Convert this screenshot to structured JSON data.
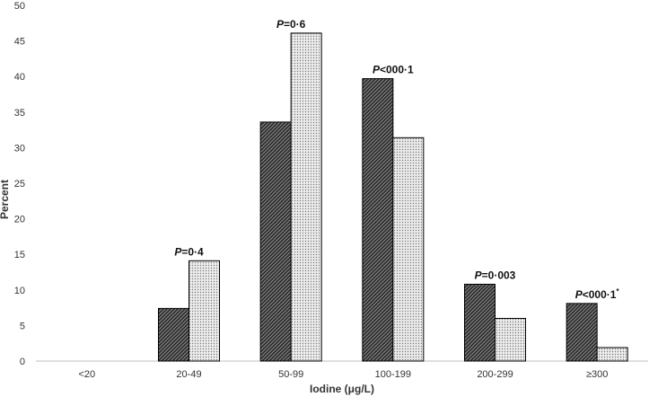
{
  "chart_data": {
    "type": "bar",
    "xlabel": "Iodine (μg/L)",
    "ylabel": "Percent",
    "ylim": [
      0,
      50
    ],
    "yticks": [
      0,
      5,
      10,
      15,
      20,
      25,
      30,
      35,
      40,
      45,
      50
    ],
    "categories": [
      "<20",
      "20-49",
      "50-99",
      "100-199",
      "200-299",
      "≥300"
    ],
    "series": [
      {
        "fill": "dark-diagonal-hatch",
        "values": [
          0,
          7.4,
          33.6,
          39.7,
          10.8,
          8.1
        ]
      },
      {
        "fill": "light-dotted-pattern",
        "values": [
          0,
          14.1,
          46.1,
          31.4,
          6.0,
          1.9
        ]
      }
    ],
    "annotations": [
      {
        "category": "20-49",
        "prefix": "P",
        "text": "=0·4",
        "suffix": ""
      },
      {
        "category": "50-99",
        "prefix": "P",
        "text": "=0·6",
        "suffix": ""
      },
      {
        "category": "100-199",
        "prefix": "P",
        "text": "<000·1",
        "suffix": ""
      },
      {
        "category": "200-299",
        "prefix": "P",
        "text": "=0·003",
        "suffix": ""
      },
      {
        "category": "≥300",
        "prefix": "P",
        "text": "<000·1",
        "suffix": "*"
      }
    ],
    "grid": false,
    "legend": "none",
    "colors": {
      "axis": "#bfbfbf",
      "bar_stroke": "#000000",
      "dark_bar_fill": "#2f2f2f",
      "light_bar_fill": "#e6e6e6"
    }
  }
}
